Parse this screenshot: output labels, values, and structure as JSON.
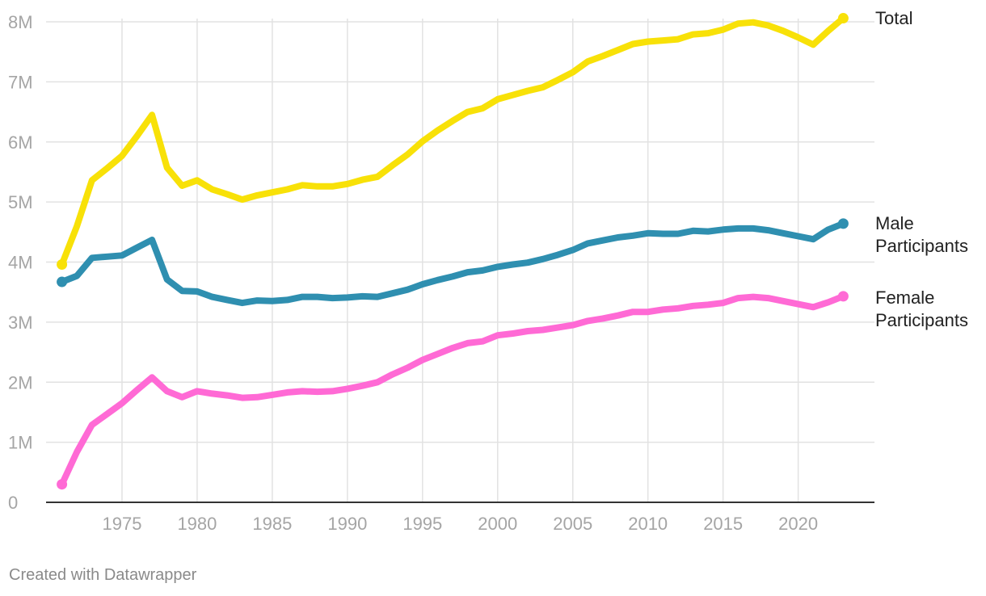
{
  "chart_data": {
    "type": "line",
    "title": "",
    "xlabel": "",
    "ylabel": "",
    "x": [
      1971,
      1972,
      1973,
      1974,
      1975,
      1976,
      1977,
      1978,
      1979,
      1980,
      1981,
      1982,
      1983,
      1984,
      1985,
      1986,
      1987,
      1988,
      1989,
      1990,
      1991,
      1992,
      1993,
      1994,
      1995,
      1996,
      1997,
      1998,
      1999,
      2000,
      2001,
      2002,
      2003,
      2004,
      2005,
      2006,
      2007,
      2008,
      2009,
      2010,
      2011,
      2012,
      2013,
      2014,
      2015,
      2016,
      2017,
      2018,
      2019,
      2020,
      2021,
      2022,
      2023
    ],
    "xlim": [
      1970,
      2024
    ],
    "ylim": [
      0,
      8000000
    ],
    "x_ticks": [
      1975,
      1980,
      1985,
      1990,
      1995,
      2000,
      2005,
      2010,
      2015,
      2020
    ],
    "x_tick_labels": [
      "1975",
      "1980",
      "1985",
      "1990",
      "1995",
      "2000",
      "2005",
      "2010",
      "2015",
      "2020"
    ],
    "y_ticks": [
      0,
      1000000,
      2000000,
      3000000,
      4000000,
      5000000,
      6000000,
      7000000,
      8000000
    ],
    "y_tick_labels": [
      "0",
      "1M",
      "2M",
      "3M",
      "4M",
      "5M",
      "6M",
      "7M",
      "8M"
    ],
    "grid": true,
    "series": [
      {
        "name": "Total",
        "label_lines": [
          "Total"
        ],
        "color": "#f8e108",
        "values": [
          3960000,
          4600000,
          5360000,
          5560000,
          5770000,
          6100000,
          6450000,
          5570000,
          5270000,
          5360000,
          5210000,
          5130000,
          5040000,
          5110000,
          5160000,
          5210000,
          5280000,
          5260000,
          5260000,
          5300000,
          5370000,
          5420000,
          5610000,
          5790000,
          6010000,
          6190000,
          6350000,
          6500000,
          6560000,
          6710000,
          6780000,
          6850000,
          6910000,
          7030000,
          7160000,
          7340000,
          7430000,
          7530000,
          7630000,
          7670000,
          7690000,
          7710000,
          7790000,
          7810000,
          7870000,
          7970000,
          7990000,
          7940000,
          7850000,
          7740000,
          7620000,
          7850000,
          8060000
        ]
      },
      {
        "name": "Male Participants",
        "label_lines": [
          "Male",
          "Participants"
        ],
        "color": "#2f8fb0",
        "values": [
          3670000,
          3770000,
          4070000,
          4090000,
          4110000,
          4240000,
          4370000,
          3710000,
          3520000,
          3510000,
          3420000,
          3370000,
          3320000,
          3360000,
          3350000,
          3370000,
          3420000,
          3420000,
          3400000,
          3410000,
          3430000,
          3420000,
          3480000,
          3540000,
          3630000,
          3700000,
          3760000,
          3830000,
          3860000,
          3920000,
          3960000,
          3990000,
          4050000,
          4120000,
          4200000,
          4310000,
          4360000,
          4410000,
          4440000,
          4480000,
          4470000,
          4470000,
          4520000,
          4510000,
          4540000,
          4560000,
          4560000,
          4530000,
          4480000,
          4430000,
          4380000,
          4540000,
          4640000
        ]
      },
      {
        "name": "Female Participants",
        "label_lines": [
          "Female",
          "Participants"
        ],
        "color": "#ff6ad5",
        "values": [
          300000,
          840000,
          1290000,
          1470000,
          1650000,
          1870000,
          2080000,
          1850000,
          1750000,
          1850000,
          1810000,
          1780000,
          1740000,
          1750000,
          1790000,
          1830000,
          1850000,
          1840000,
          1850000,
          1890000,
          1940000,
          2000000,
          2130000,
          2240000,
          2370000,
          2470000,
          2570000,
          2650000,
          2680000,
          2780000,
          2810000,
          2850000,
          2870000,
          2910000,
          2950000,
          3020000,
          3060000,
          3110000,
          3170000,
          3170000,
          3210000,
          3230000,
          3270000,
          3290000,
          3320000,
          3400000,
          3420000,
          3400000,
          3350000,
          3300000,
          3250000,
          3330000,
          3430000
        ]
      }
    ]
  },
  "footer": {
    "credit": "Created with Datawrapper"
  }
}
